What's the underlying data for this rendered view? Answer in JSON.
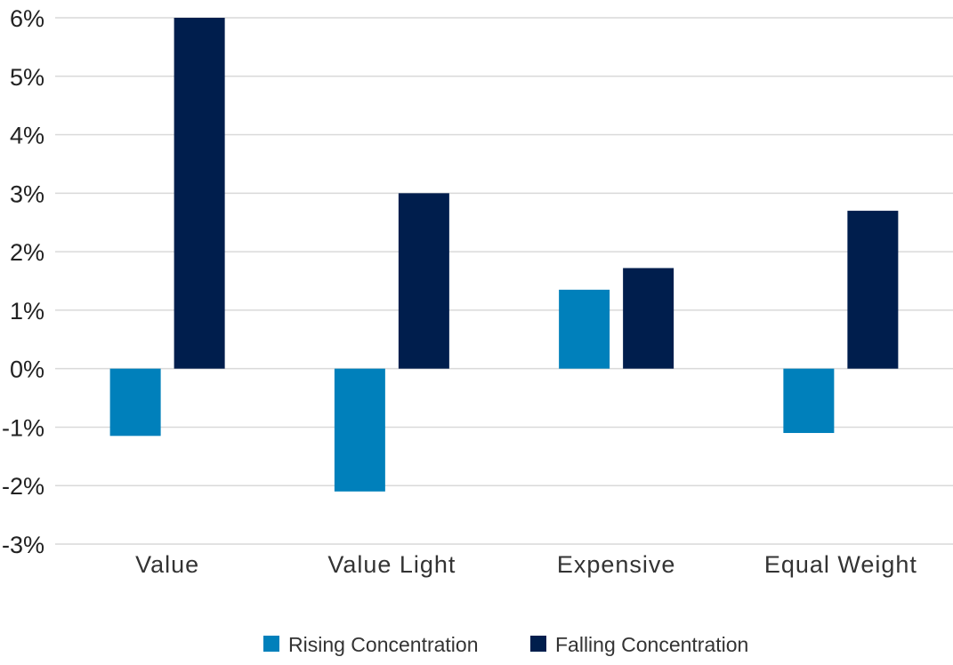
{
  "chart_data": {
    "type": "bar",
    "categories": [
      "Value",
      "Value Light",
      "Expensive",
      "Equal Weight"
    ],
    "series": [
      {
        "name": "Rising Concentration",
        "color": "#0080bb",
        "values": [
          -1.15,
          -2.1,
          1.35,
          -1.1
        ]
      },
      {
        "name": "Falling Concentration",
        "color": "#001e4d",
        "values": [
          6.0,
          3.0,
          1.72,
          2.7
        ]
      }
    ],
    "ylim": [
      -3,
      6
    ],
    "yticks": [
      -3,
      -2,
      -1,
      0,
      1,
      2,
      3,
      4,
      5,
      6
    ],
    "ytick_labels": [
      "-3%",
      "-2%",
      "-1%",
      "0%",
      "1%",
      "2%",
      "3%",
      "4%",
      "5%",
      "6%"
    ],
    "grid": true,
    "gridline_color": "#d9d9d9",
    "legend_position": "bottom",
    "title": "",
    "xlabel": "",
    "ylabel": ""
  }
}
